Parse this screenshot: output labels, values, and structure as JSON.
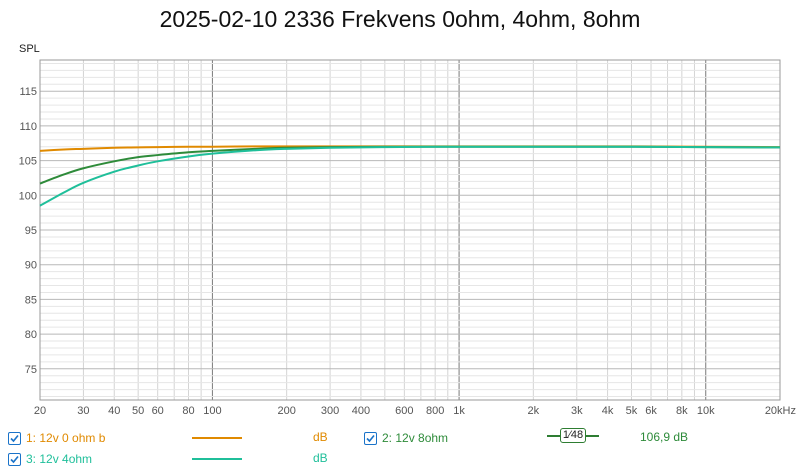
{
  "title": "2025-02-10 2336 Frekvens 0ohm, 4ohm, 8ohm",
  "chart_data": {
    "type": "line",
    "title": "2025-02-10 2336 Frekvens 0ohm, 4ohm, 8ohm",
    "ylabel": "SPL",
    "xlabel": "",
    "x_scale": "log",
    "xlim": [
      20,
      20000
    ],
    "ylim": [
      70.5,
      119.5
    ],
    "grid": true,
    "x_ticks": [
      {
        "v": 20,
        "label": "20"
      },
      {
        "v": 30,
        "label": "30"
      },
      {
        "v": 40,
        "label": "40"
      },
      {
        "v": 50,
        "label": "50"
      },
      {
        "v": 60,
        "label": "60"
      },
      {
        "v": 80,
        "label": "80"
      },
      {
        "v": 100,
        "label": "100"
      },
      {
        "v": 200,
        "label": "200"
      },
      {
        "v": 300,
        "label": "300"
      },
      {
        "v": 400,
        "label": "400"
      },
      {
        "v": 600,
        "label": "600"
      },
      {
        "v": 800,
        "label": "800"
      },
      {
        "v": 1000,
        "label": "1k"
      },
      {
        "v": 2000,
        "label": "2k"
      },
      {
        "v": 3000,
        "label": "3k"
      },
      {
        "v": 4000,
        "label": "4k"
      },
      {
        "v": 5000,
        "label": "5k"
      },
      {
        "v": 6000,
        "label": "6k"
      },
      {
        "v": 8000,
        "label": "8k"
      },
      {
        "v": 10000,
        "label": "10k"
      },
      {
        "v": 20000,
        "label": "20kHz"
      }
    ],
    "y_ticks": [
      75,
      80,
      85,
      90,
      95,
      100,
      105,
      110,
      115
    ],
    "series": [
      {
        "name": "1: 12v 0 ohm b",
        "color": "#e08a00",
        "x": [
          20,
          25,
          30,
          40,
          50,
          60,
          80,
          100,
          150,
          200,
          300,
          500,
          1000,
          2000,
          5000,
          10000,
          20000
        ],
        "y": [
          106.4,
          106.6,
          106.7,
          106.85,
          106.9,
          106.95,
          107.0,
          107.0,
          107.05,
          107.05,
          107.05,
          107.05,
          107.05,
          107.05,
          107.05,
          107.0,
          106.95
        ]
      },
      {
        "name": "2: 12v 8ohm",
        "color": "#2e8b3a",
        "x": [
          20,
          25,
          30,
          40,
          50,
          60,
          80,
          100,
          150,
          200,
          300,
          500,
          1000,
          2000,
          5000,
          10000,
          20000
        ],
        "y": [
          101.7,
          103.0,
          103.9,
          104.9,
          105.5,
          105.8,
          106.2,
          106.4,
          106.7,
          106.85,
          106.95,
          107.0,
          107.0,
          107.0,
          107.0,
          106.95,
          106.9
        ]
      },
      {
        "name": "3: 12v 4ohm",
        "color": "#1fbf9a",
        "x": [
          20,
          25,
          30,
          40,
          50,
          60,
          80,
          100,
          150,
          200,
          300,
          500,
          1000,
          2000,
          5000,
          10000,
          20000
        ],
        "y": [
          98.5,
          100.4,
          101.8,
          103.4,
          104.3,
          104.9,
          105.6,
          106.0,
          106.5,
          106.7,
          106.85,
          106.95,
          107.0,
          107.0,
          107.0,
          106.95,
          106.9
        ]
      }
    ]
  },
  "legend": {
    "items": [
      {
        "label": "1: 12v 0 ohm b",
        "unit": "dB",
        "color": "#e08a00"
      },
      {
        "label": "2: 12v 8ohm",
        "unit": "",
        "color": "#2e8b3a",
        "smoothing": "1⁄48",
        "value": "106,9 dB"
      },
      {
        "label": "3: 12v 4ohm",
        "unit": "dB",
        "color": "#1fbf9a"
      }
    ]
  }
}
